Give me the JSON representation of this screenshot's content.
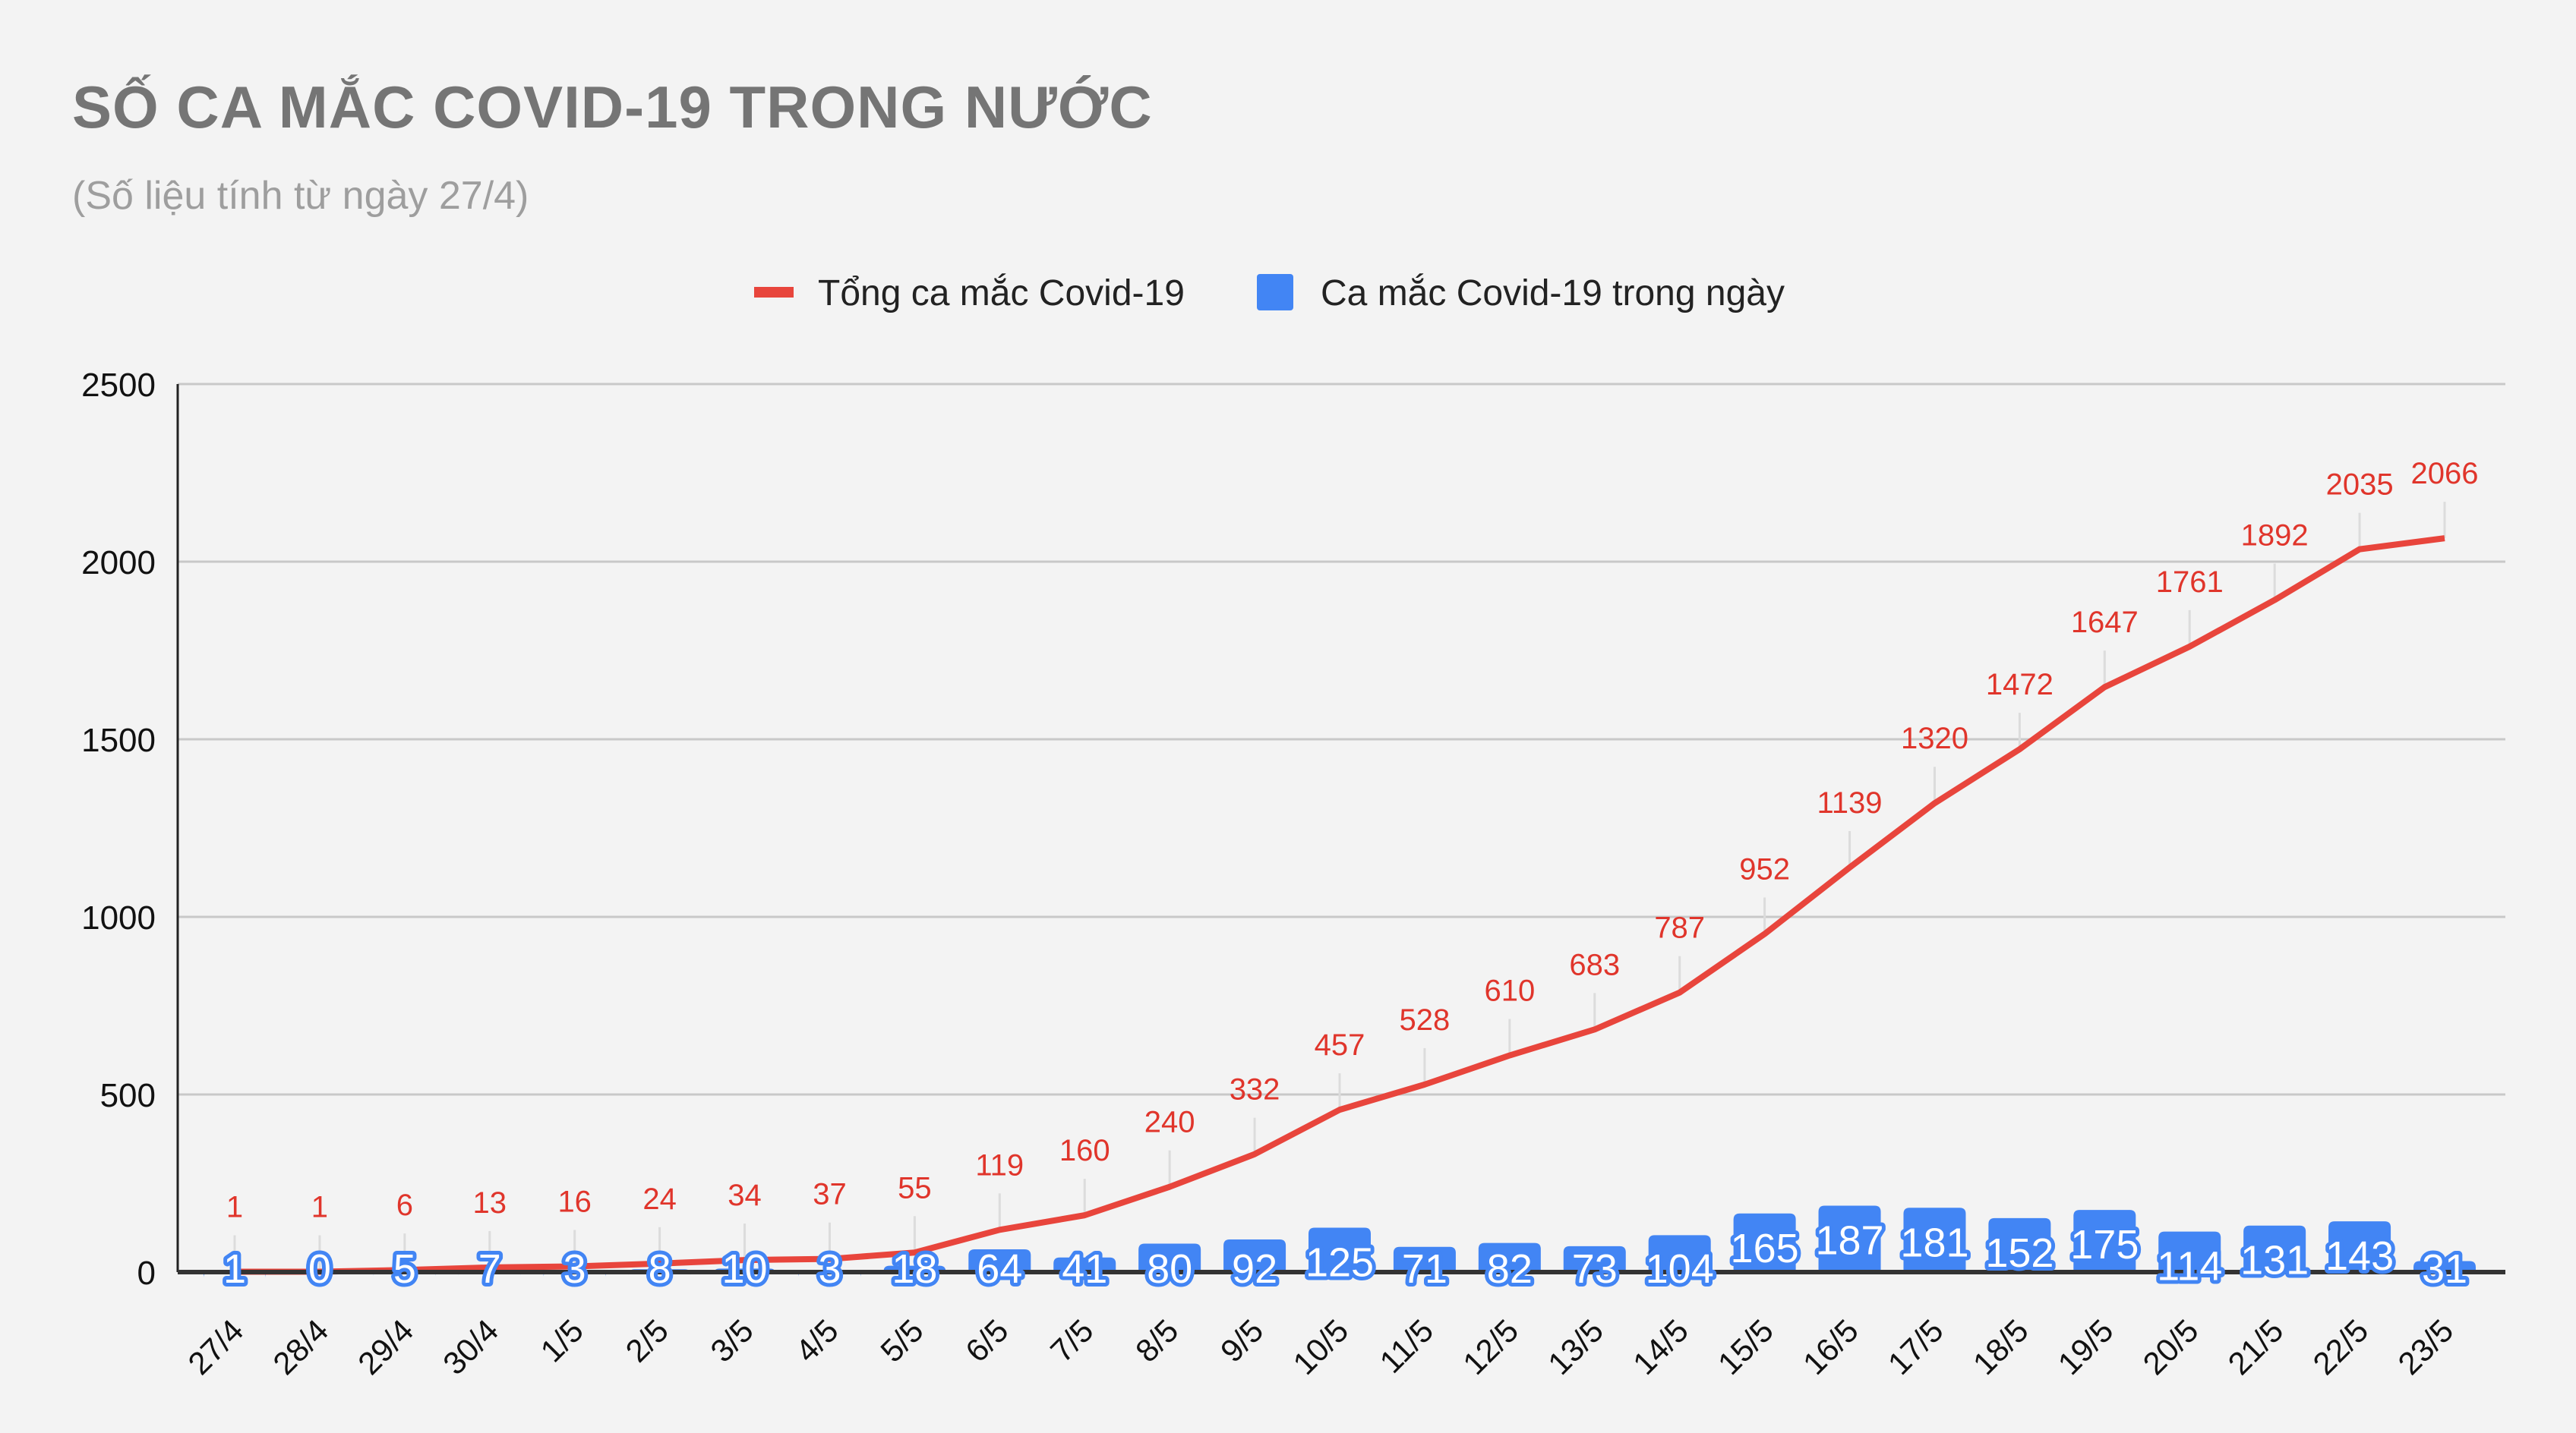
{
  "chart_data": {
    "type": "bar+line",
    "title": "SỐ CA MẮC COVID-19 TRONG NƯỚC",
    "subtitle": "(Số liệu tính từ ngày 27/4)",
    "categories": [
      "27/4",
      "28/4",
      "29/4",
      "30/4",
      "1/5",
      "2/5",
      "3/5",
      "4/5",
      "5/5",
      "6/5",
      "7/5",
      "8/5",
      "9/5",
      "10/5",
      "11/5",
      "12/5",
      "13/5",
      "14/5",
      "15/5",
      "16/5",
      "17/5",
      "18/5",
      "19/5",
      "20/5",
      "21/5",
      "22/5",
      "23/5"
    ],
    "series": [
      {
        "name": "Tổng ca mắc Covid-19",
        "type": "line",
        "color": "#e8453c",
        "values": [
          1,
          1,
          6,
          13,
          16,
          24,
          34,
          37,
          55,
          119,
          160,
          240,
          332,
          457,
          528,
          610,
          683,
          787,
          952,
          1139,
          1320,
          1472,
          1647,
          1761,
          1892,
          2035,
          2066
        ]
      },
      {
        "name": "Ca mắc Covid-19 trong ngày",
        "type": "bar",
        "color": "#4285f4",
        "values": [
          1,
          0,
          5,
          7,
          3,
          8,
          10,
          3,
          18,
          64,
          41,
          80,
          92,
          125,
          71,
          82,
          73,
          104,
          165,
          187,
          181,
          152,
          175,
          114,
          131,
          143,
          31
        ]
      }
    ],
    "yticks": [
      0,
      500,
      1000,
      1500,
      2000,
      2500
    ],
    "ylim": [
      0,
      2500
    ],
    "grid": true,
    "legend": "top",
    "xlabel": "",
    "ylabel": ""
  }
}
